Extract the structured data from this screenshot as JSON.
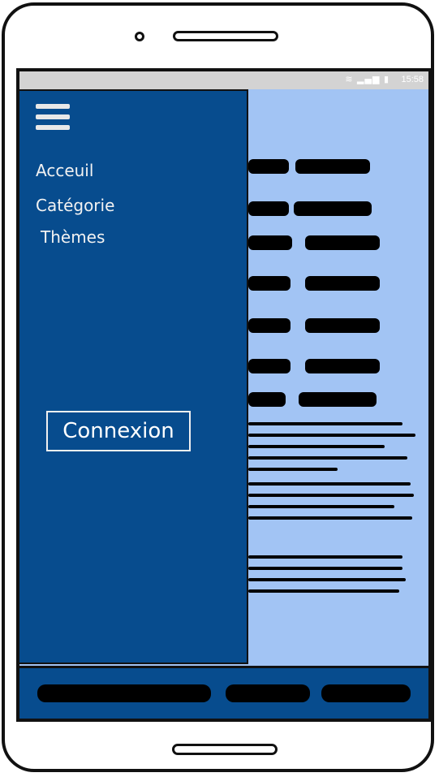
{
  "status_bar": {
    "icons": [
      "wifi-icon",
      "signal-icon",
      "battery-icon"
    ],
    "time": "15:58"
  },
  "drawer": {
    "menu_items": [
      {
        "label": "Acceuil"
      },
      {
        "label": "Catégorie"
      },
      {
        "label": "Thèmes"
      }
    ],
    "login_label": "Connexion"
  },
  "colors": {
    "drawer_bg": "#074c8e",
    "content_bg": "#a2c4f4",
    "status_bar_bg": "#d3d3d3",
    "text_light": "#f2f2f2"
  }
}
